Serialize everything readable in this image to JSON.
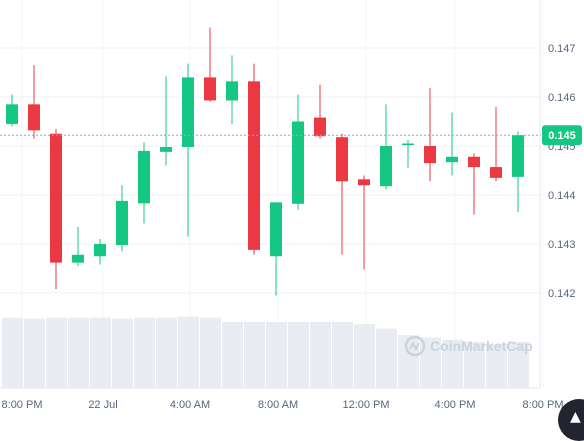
{
  "chart_data": {
    "type": "candlestick",
    "x_tick_labels": [
      "8:00 PM",
      "22 Jul",
      "4:00 AM",
      "8:00 AM",
      "12:00 PM",
      "4:00 PM",
      "8:00 PM"
    ],
    "y_tick_labels": [
      "0.147",
      "0.146",
      "0.145",
      "0.144",
      "0.143",
      "0.142"
    ],
    "ylim": [
      0.141,
      0.148
    ],
    "grid": true,
    "current_price": "0.145",
    "current_value": 0.14522,
    "up_color": "#16c784",
    "down_color": "#ea3943",
    "volume_color": "#e9edf2",
    "watermark": "CoinMarketCap",
    "candles": [
      {
        "o": 0.14545,
        "h": 0.14605,
        "l": 0.1454,
        "c": 0.14585
      },
      {
        "o": 0.14585,
        "h": 0.14665,
        "l": 0.14515,
        "c": 0.14532
      },
      {
        "o": 0.14525,
        "h": 0.14535,
        "l": 0.14208,
        "c": 0.14262
      },
      {
        "o": 0.14262,
        "h": 0.14335,
        "l": 0.14255,
        "c": 0.14278
      },
      {
        "o": 0.14275,
        "h": 0.1431,
        "l": 0.14258,
        "c": 0.143
      },
      {
        "o": 0.14298,
        "h": 0.1442,
        "l": 0.14285,
        "c": 0.14388
      },
      {
        "o": 0.14383,
        "h": 0.14508,
        "l": 0.14342,
        "c": 0.1449
      },
      {
        "o": 0.14488,
        "h": 0.14642,
        "l": 0.1446,
        "c": 0.14498
      },
      {
        "o": 0.14498,
        "h": 0.14668,
        "l": 0.14315,
        "c": 0.1464
      },
      {
        "o": 0.1464,
        "h": 0.14742,
        "l": 0.1459,
        "c": 0.14593
      },
      {
        "o": 0.14593,
        "h": 0.14685,
        "l": 0.14545,
        "c": 0.14632
      },
      {
        "o": 0.14632,
        "h": 0.14668,
        "l": 0.14278,
        "c": 0.14288
      },
      {
        "o": 0.14275,
        "h": 0.14385,
        "l": 0.14195,
        "c": 0.14385
      },
      {
        "o": 0.14382,
        "h": 0.14605,
        "l": 0.1437,
        "c": 0.1455
      },
      {
        "o": 0.14558,
        "h": 0.14625,
        "l": 0.14515,
        "c": 0.1452
      },
      {
        "o": 0.14518,
        "h": 0.14525,
        "l": 0.14278,
        "c": 0.14428
      },
      {
        "o": 0.14432,
        "h": 0.1444,
        "l": 0.14248,
        "c": 0.1442
      },
      {
        "o": 0.14418,
        "h": 0.14585,
        "l": 0.14412,
        "c": 0.145
      },
      {
        "o": 0.14502,
        "h": 0.14512,
        "l": 0.14455,
        "c": 0.14505
      },
      {
        "o": 0.145,
        "h": 0.14618,
        "l": 0.14428,
        "c": 0.14465
      },
      {
        "o": 0.14467,
        "h": 0.14568,
        "l": 0.1444,
        "c": 0.14478
      },
      {
        "o": 0.14478,
        "h": 0.14485,
        "l": 0.1436,
        "c": 0.14457
      },
      {
        "o": 0.14457,
        "h": 0.1458,
        "l": 0.14428,
        "c": 0.14435
      },
      {
        "o": 0.14437,
        "h": 0.1453,
        "l": 0.14365,
        "c": 0.14522
      }
    ],
    "volumes": [
      0.64,
      0.63,
      0.64,
      0.64,
      0.64,
      0.63,
      0.64,
      0.64,
      0.65,
      0.64,
      0.6,
      0.6,
      0.6,
      0.6,
      0.6,
      0.6,
      0.58,
      0.54,
      0.48,
      0.46,
      0.44,
      0.42,
      0.4,
      0.42
    ]
  }
}
